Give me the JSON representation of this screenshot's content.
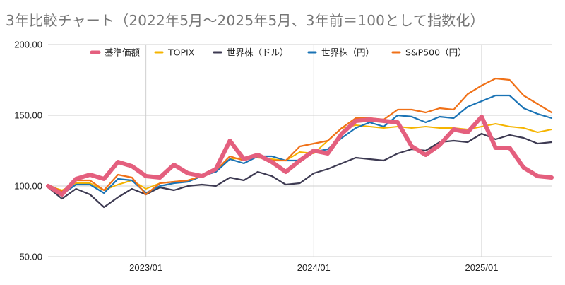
{
  "chart_data": {
    "type": "line",
    "title": "3年比較チャート（2022年5月〜2025年5月、3年前＝100として指数化）",
    "xlabel": "",
    "ylabel": "",
    "ylim": [
      50,
      200
    ],
    "y_ticks": [
      "50.00",
      "100.00",
      "150.00",
      "200.00"
    ],
    "x_ticks": [
      "2023/01",
      "2024/01",
      "2025/01"
    ],
    "x_tick_months": [
      7,
      19,
      31
    ],
    "x": [
      "2022/05",
      "2022/06",
      "2022/07",
      "2022/08",
      "2022/09",
      "2022/10",
      "2022/11",
      "2022/12",
      "2023/01",
      "2023/02",
      "2023/03",
      "2023/04",
      "2023/05",
      "2023/06",
      "2023/07",
      "2023/08",
      "2023/09",
      "2023/10",
      "2023/11",
      "2023/12",
      "2024/01",
      "2024/02",
      "2024/03",
      "2024/04",
      "2024/05",
      "2024/06",
      "2024/07",
      "2024/08",
      "2024/09",
      "2024/10",
      "2024/11",
      "2024/12",
      "2025/01",
      "2025/02",
      "2025/03",
      "2025/04",
      "2025/05"
    ],
    "grid": true,
    "legend_position": "top",
    "series": [
      {
        "name": "TOPIX",
        "color": "#f5b400",
        "width": 2,
        "values": [
          100,
          97,
          102,
          102,
          97,
          101,
          104,
          98,
          102,
          103,
          104,
          107,
          112,
          119,
          120,
          120,
          119,
          118,
          124,
          123,
          132,
          141,
          143,
          142,
          141,
          142,
          141,
          142,
          141,
          141,
          140,
          142,
          144,
          142,
          141,
          138,
          140
        ]
      },
      {
        "name": "世界株（ドル）",
        "color": "#3d3a52",
        "width": 2.2,
        "values": [
          99,
          91,
          98,
          94,
          85,
          92,
          98,
          94,
          99,
          97,
          100,
          101,
          100,
          106,
          104,
          110,
          107,
          101,
          102,
          109,
          112,
          116,
          120,
          119,
          118,
          123,
          126,
          125,
          131,
          132,
          131,
          137,
          133,
          136,
          134,
          130,
          131
        ]
      },
      {
        "name": "世界株（円）",
        "color": "#1a73b5",
        "width": 2.2,
        "values": [
          100,
          94,
          101,
          101,
          95,
          105,
          104,
          95,
          100,
          102,
          103,
          107,
          110,
          119,
          116,
          121,
          121,
          118,
          118,
          124,
          126,
          134,
          141,
          145,
          142,
          150,
          149,
          145,
          149,
          148,
          156,
          160,
          164,
          164,
          155,
          151,
          148
        ]
      },
      {
        "name": "S&P500（円）",
        "color": "#f07118",
        "width": 2.2,
        "values": [
          101,
          96,
          104,
          104,
          97,
          108,
          106,
          94,
          102,
          103,
          104,
          107,
          111,
          121,
          118,
          123,
          118,
          118,
          128,
          130,
          132,
          141,
          148,
          148,
          147,
          154,
          154,
          152,
          155,
          154,
          165,
          171,
          176,
          175,
          164,
          158,
          152
        ]
      },
      {
        "name": "基準価額",
        "color": "#e45f7e",
        "width": 6,
        "values": [
          100,
          94,
          105,
          108,
          105,
          117,
          114,
          107,
          106,
          115,
          109,
          107,
          112,
          132,
          119,
          122,
          117,
          110,
          118,
          125,
          123,
          137,
          146,
          147,
          146,
          145,
          128,
          122,
          129,
          140,
          138,
          149,
          127,
          127,
          113,
          107,
          106
        ]
      }
    ],
    "legend_order": [
      "基準価額",
      "TOPIX",
      "世界株（ドル）",
      "世界株（円）",
      "S&P500（円）"
    ]
  }
}
